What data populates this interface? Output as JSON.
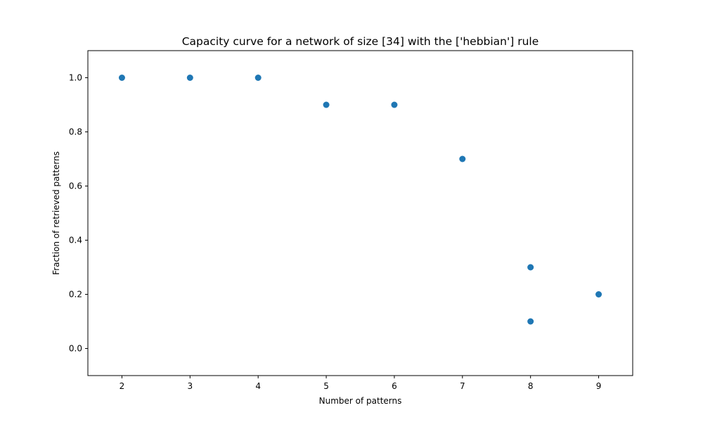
{
  "chart_data": {
    "type": "scatter",
    "title": "Capacity curve for a network of size [34] with the ['hebbian'] rule",
    "xlabel": "Number of patterns",
    "ylabel": "Fraction of retrieved patterns",
    "xlim": [
      1.5,
      9.5
    ],
    "ylim": [
      -0.1,
      1.1
    ],
    "xticks": [
      2,
      3,
      4,
      5,
      6,
      7,
      8,
      9
    ],
    "xtick_labels": [
      "2",
      "3",
      "4",
      "5",
      "6",
      "7",
      "8",
      "9"
    ],
    "yticks": [
      0.0,
      0.2,
      0.4,
      0.6,
      0.8,
      1.0
    ],
    "ytick_labels": [
      "0.0",
      "0.2",
      "0.4",
      "0.6",
      "0.8",
      "1.0"
    ],
    "grid": false,
    "color": "#1f77b4",
    "points": [
      {
        "x": 2,
        "y": 1.0
      },
      {
        "x": 3,
        "y": 1.0
      },
      {
        "x": 4,
        "y": 1.0
      },
      {
        "x": 5,
        "y": 0.9
      },
      {
        "x": 6,
        "y": 0.9
      },
      {
        "x": 7,
        "y": 0.7
      },
      {
        "x": 8,
        "y": 0.3
      },
      {
        "x": 8,
        "y": 0.1
      },
      {
        "x": 9,
        "y": 0.2
      }
    ]
  }
}
